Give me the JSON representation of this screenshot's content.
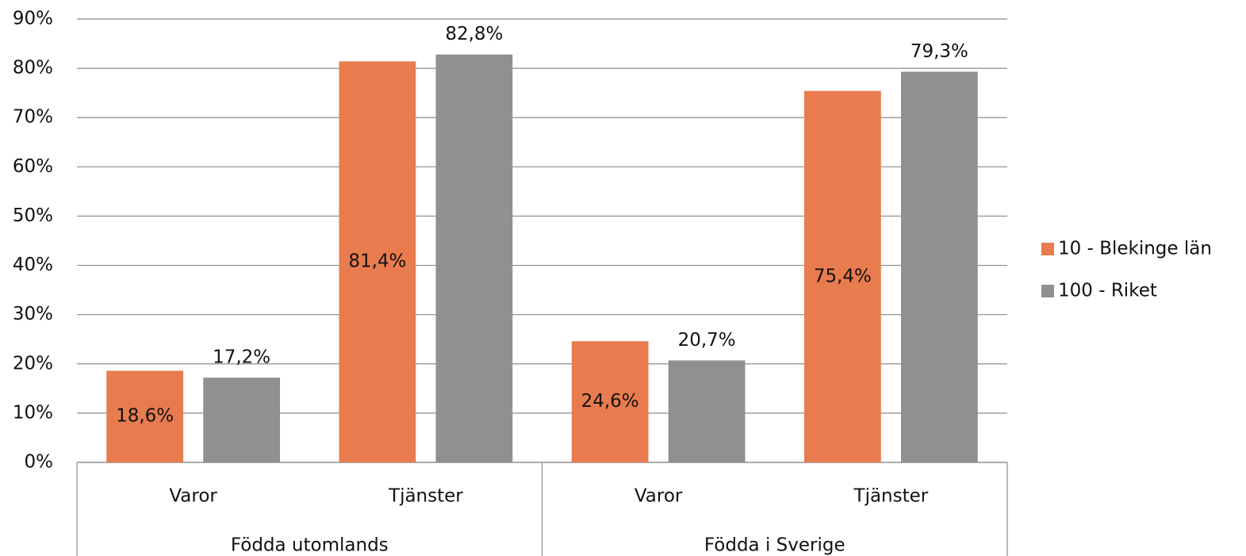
{
  "chart_data": {
    "type": "bar",
    "groups": [
      {
        "name": "Födda utomlands",
        "categories": [
          "Varor",
          "Tjänster"
        ]
      },
      {
        "name": "Födda i Sverige",
        "categories": [
          "Varor",
          "Tjänster"
        ]
      }
    ],
    "series": [
      {
        "name": "10 - Blekinge län",
        "color": "#e87c4f",
        "values": [
          18.6,
          81.4,
          24.6,
          75.4
        ],
        "value_labels": [
          "18,6%",
          "81,4%",
          "24,6%",
          "75,4%"
        ]
      },
      {
        "name": "100 - Riket",
        "color": "#8e918e",
        "values": [
          17.2,
          82.8,
          20.7,
          79.3
        ],
        "value_labels": [
          "17,2%",
          "82,8%",
          "20,7%",
          "79,3%"
        ]
      }
    ],
    "ylim": [
      0,
      90
    ],
    "yticks": [
      {
        "value": 0,
        "label": "0%"
      },
      {
        "value": 10,
        "label": "10%"
      },
      {
        "value": 20,
        "label": "20%"
      },
      {
        "value": 30,
        "label": "30%"
      },
      {
        "value": 40,
        "label": "40%"
      },
      {
        "value": 50,
        "label": "50%"
      },
      {
        "value": 60,
        "label": "60%"
      },
      {
        "value": 70,
        "label": "70%"
      },
      {
        "value": 80,
        "label": "80%"
      },
      {
        "value": 90,
        "label": "90%"
      }
    ],
    "grid": true,
    "legend": "right"
  }
}
